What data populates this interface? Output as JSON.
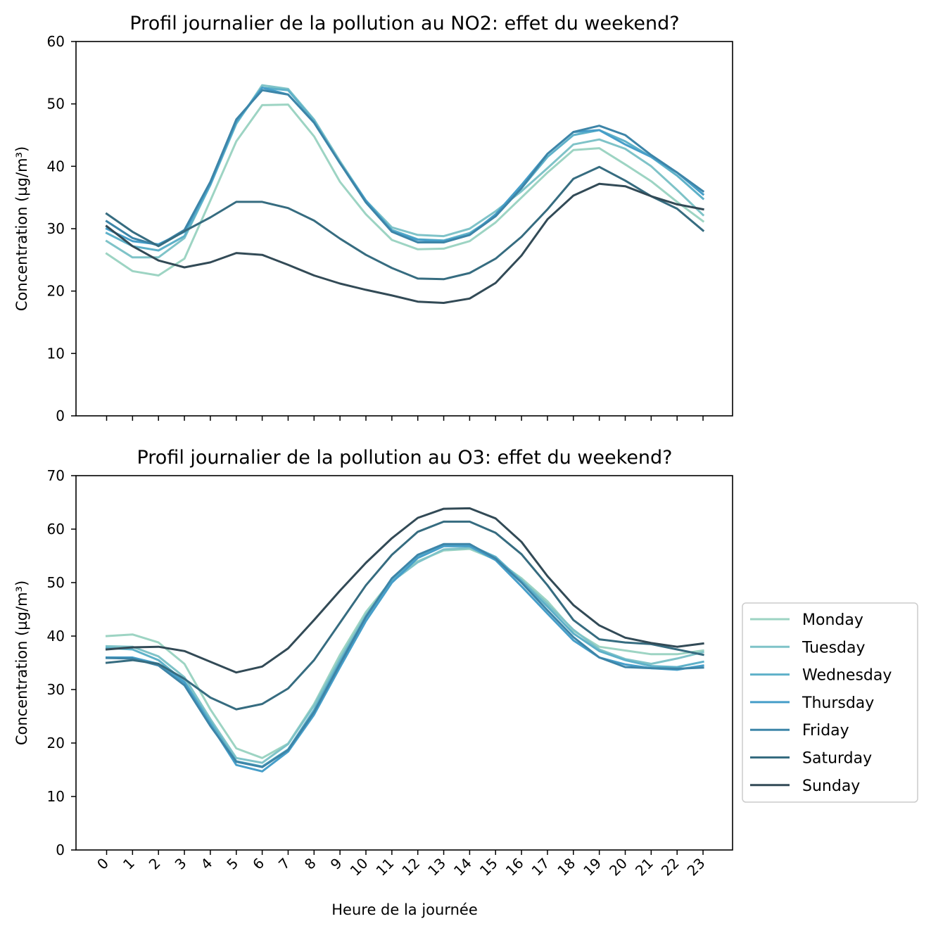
{
  "chart_data": [
    {
      "type": "line",
      "title": "Profil journalier de la pollution au NO2: effet du weekend?",
      "ylabel": "Concentration (µg/m³)",
      "xlabel": "",
      "ylim": [
        0,
        60
      ],
      "yticks": [
        0,
        10,
        20,
        30,
        40,
        50,
        60
      ],
      "x": [
        0,
        1,
        2,
        3,
        4,
        5,
        6,
        7,
        8,
        9,
        10,
        11,
        12,
        13,
        14,
        15,
        16,
        17,
        18,
        19,
        20,
        21,
        22,
        23
      ],
      "series": [
        {
          "name": "Monday",
          "color": "#9dd4c3",
          "values": [
            26.0,
            23.2,
            22.5,
            25.2,
            34.5,
            44.0,
            49.8,
            49.9,
            44.8,
            37.5,
            32.3,
            28.2,
            26.7,
            26.8,
            28.0,
            31.0,
            35.0,
            39.0,
            42.6,
            42.9,
            40.3,
            37.6,
            34.3,
            31.2
          ]
        },
        {
          "name": "Tuesday",
          "color": "#7fc3c8",
          "values": [
            28.0,
            25.4,
            25.4,
            28.5,
            37.0,
            46.8,
            53.0,
            52.4,
            47.5,
            40.8,
            34.5,
            30.2,
            29.0,
            28.8,
            30.0,
            32.8,
            36.0,
            39.7,
            43.5,
            44.3,
            42.8,
            40.0,
            36.2,
            32.2
          ]
        },
        {
          "name": "Wednesday",
          "color": "#5eb1c9",
          "values": [
            29.3,
            27.2,
            26.5,
            28.8,
            37.0,
            47.0,
            52.6,
            52.2,
            47.3,
            40.5,
            34.5,
            29.8,
            28.3,
            28.1,
            29.3,
            32.0,
            36.5,
            41.5,
            45.0,
            45.8,
            44.0,
            41.5,
            38.5,
            34.8
          ]
        },
        {
          "name": "Thursday",
          "color": "#469ec9",
          "values": [
            30.0,
            28.0,
            27.5,
            29.5,
            37.2,
            47.2,
            52.6,
            51.5,
            47.0,
            40.5,
            34.5,
            29.6,
            28.2,
            28.0,
            29.0,
            32.3,
            37.0,
            42.0,
            45.5,
            45.8,
            43.5,
            41.5,
            39.0,
            35.5
          ]
        },
        {
          "name": "Friday",
          "color": "#3d85a8",
          "values": [
            31.2,
            28.5,
            27.3,
            29.8,
            37.5,
            47.5,
            52.2,
            51.5,
            47.0,
            40.5,
            34.2,
            29.5,
            27.8,
            27.8,
            29.0,
            32.0,
            36.5,
            42.0,
            45.5,
            46.5,
            45.0,
            41.8,
            39.0,
            36.0
          ]
        },
        {
          "name": "Saturday",
          "color": "#366c80",
          "values": [
            32.4,
            29.5,
            27.2,
            29.6,
            31.8,
            34.3,
            34.3,
            33.3,
            31.3,
            28.4,
            25.8,
            23.7,
            22.0,
            21.9,
            22.9,
            25.2,
            28.7,
            33.1,
            38.0,
            39.9,
            37.7,
            35.2,
            33.2,
            29.7
          ]
        },
        {
          "name": "Sunday",
          "color": "#324a56",
          "values": [
            30.4,
            27.2,
            24.9,
            23.8,
            24.6,
            26.1,
            25.8,
            24.2,
            22.5,
            21.2,
            20.2,
            19.3,
            18.3,
            18.1,
            18.8,
            21.3,
            25.7,
            31.5,
            35.3,
            37.2,
            36.8,
            35.2,
            33.9,
            33.1
          ]
        }
      ]
    },
    {
      "type": "line",
      "title": "Profil journalier de la pollution au O3: effet du weekend?",
      "ylabel": "Concentration (µg/m³)",
      "xlabel": "Heure de la journée",
      "ylim": [
        0,
        70
      ],
      "yticks": [
        0,
        10,
        20,
        30,
        40,
        50,
        60,
        70
      ],
      "x": [
        0,
        1,
        2,
        3,
        4,
        5,
        6,
        7,
        8,
        9,
        10,
        11,
        12,
        13,
        14,
        15,
        16,
        17,
        18,
        19,
        20,
        21,
        22,
        23
      ],
      "xticks": [
        "0",
        "1",
        "2",
        "3",
        "4",
        "5",
        "6",
        "7",
        "8",
        "9",
        "10",
        "11",
        "12",
        "13",
        "14",
        "15",
        "16",
        "17",
        "18",
        "19",
        "20",
        "21",
        "22",
        "23"
      ],
      "series": [
        {
          "name": "Monday",
          "color": "#9dd4c3",
          "values": [
            40.0,
            40.3,
            38.8,
            34.8,
            26.3,
            19.0,
            17.2,
            19.9,
            27.3,
            36.5,
            44.5,
            50.5,
            54.0,
            56.0,
            56.3,
            54.3,
            50.8,
            46.5,
            41.0,
            38.0,
            37.3,
            36.6,
            36.6,
            37.3
          ]
        },
        {
          "name": "Tuesday",
          "color": "#7fc3c8",
          "values": [
            38.1,
            38.0,
            36.2,
            32.3,
            24.5,
            17.2,
            16.3,
            19.8,
            27.0,
            35.8,
            44.0,
            50.2,
            53.8,
            56.2,
            56.5,
            54.5,
            50.5,
            46.0,
            41.2,
            37.5,
            35.7,
            34.8,
            35.8,
            37.0
          ]
        },
        {
          "name": "Wednesday",
          "color": "#5eb1c9",
          "values": [
            37.8,
            37.5,
            35.5,
            31.5,
            24.0,
            16.6,
            15.6,
            18.8,
            26.2,
            35.3,
            43.5,
            50.3,
            54.8,
            57.0,
            57.0,
            54.8,
            50.3,
            45.5,
            40.5,
            37.2,
            35.5,
            34.4,
            34.2,
            35.2
          ]
        },
        {
          "name": "Thursday",
          "color": "#469ec9",
          "values": [
            36.0,
            36.0,
            34.8,
            31.3,
            23.5,
            15.9,
            14.7,
            18.4,
            25.3,
            34.2,
            42.8,
            50.0,
            54.6,
            56.8,
            56.8,
            54.2,
            49.3,
            44.2,
            39.2,
            36.0,
            34.7,
            34.0,
            33.7,
            34.5
          ]
        },
        {
          "name": "Friday",
          "color": "#3d85a8",
          "values": [
            35.9,
            35.8,
            34.5,
            30.8,
            23.2,
            16.5,
            15.5,
            18.7,
            25.8,
            34.8,
            43.6,
            50.8,
            55.2,
            57.2,
            57.2,
            54.5,
            50.0,
            44.8,
            39.8,
            36.0,
            34.2,
            34.0,
            33.9,
            34.1
          ]
        },
        {
          "name": "Saturday",
          "color": "#366c80",
          "values": [
            35.0,
            35.5,
            34.8,
            32.0,
            28.5,
            26.3,
            27.3,
            30.2,
            35.5,
            42.5,
            49.5,
            55.2,
            59.5,
            61.4,
            61.4,
            59.3,
            55.3,
            49.5,
            43.0,
            39.4,
            38.8,
            38.5,
            37.5,
            36.5
          ]
        },
        {
          "name": "Sunday",
          "color": "#324a56",
          "values": [
            37.5,
            37.9,
            38.0,
            37.2,
            35.2,
            33.2,
            34.3,
            37.7,
            43.0,
            48.5,
            53.7,
            58.3,
            62.1,
            63.8,
            63.9,
            62.0,
            57.6,
            51.2,
            45.8,
            42.0,
            39.7,
            38.7,
            38.0,
            38.6
          ]
        }
      ]
    }
  ],
  "legend": {
    "position": "right",
    "entries": [
      "Monday",
      "Tuesday",
      "Wednesday",
      "Thursday",
      "Friday",
      "Saturday",
      "Sunday"
    ]
  }
}
